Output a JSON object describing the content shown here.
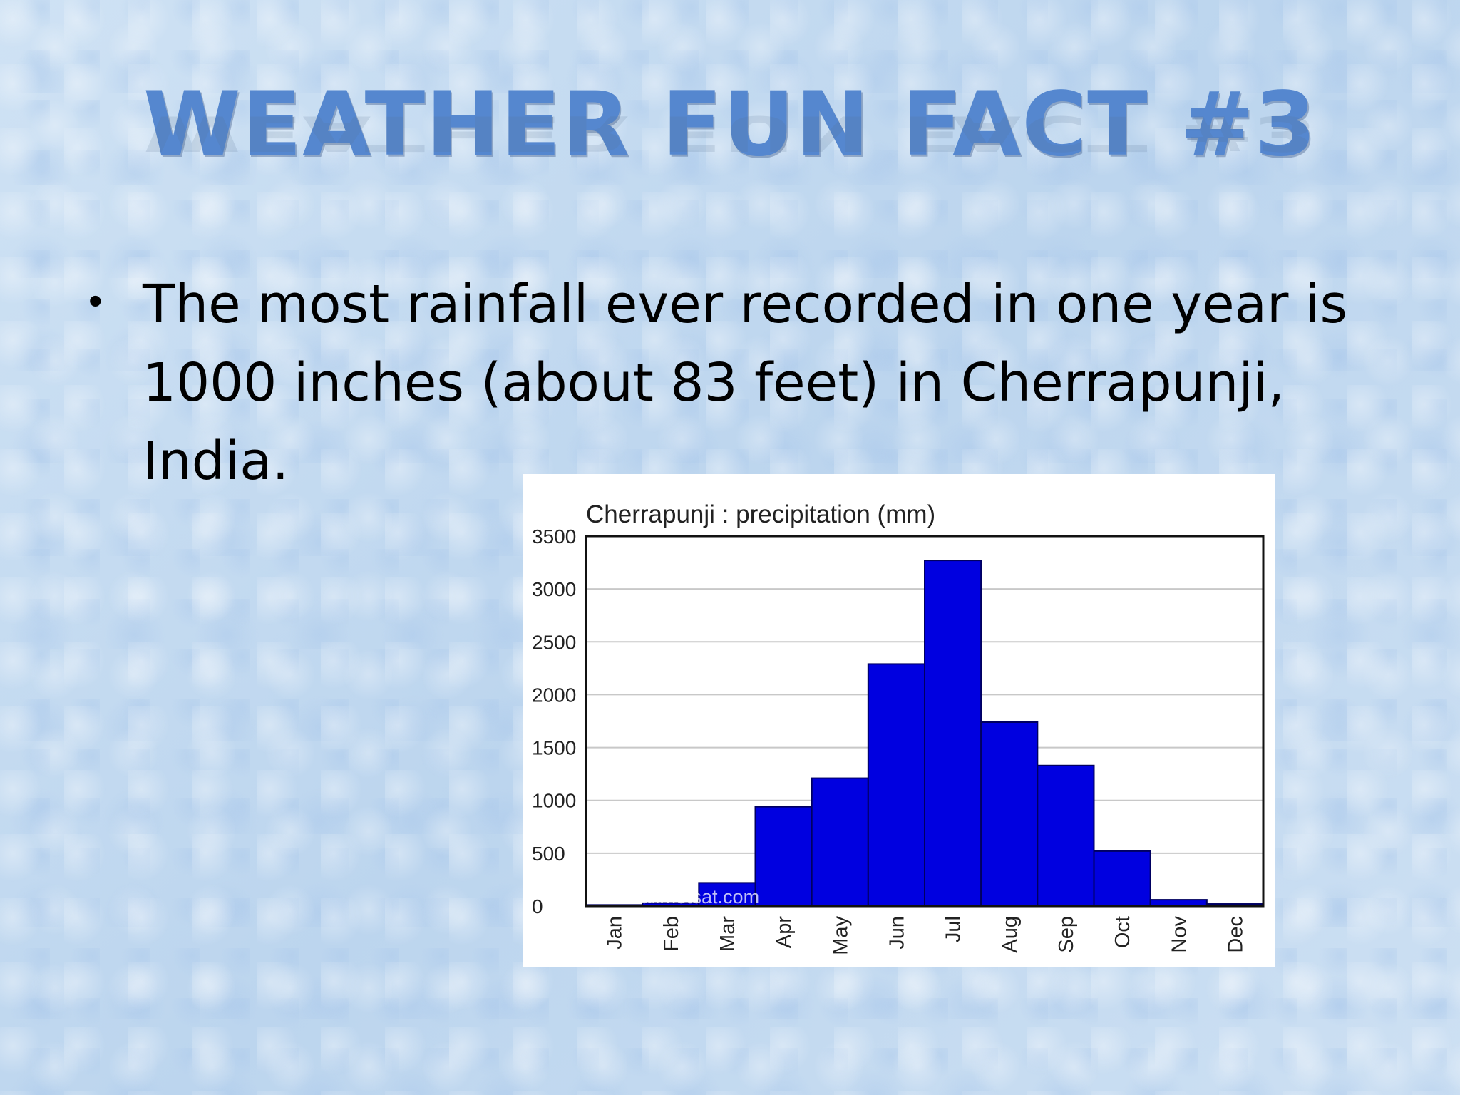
{
  "slide": {
    "title": "WEATHER FUN FACT #3",
    "bullet": "The most rainfall ever recorded in one year is 1000 inches (about 83 feet) in Cherrapunji, India."
  },
  "chart_data": {
    "type": "bar",
    "title": "Cherrapunji : precipitation (mm)",
    "xlabel": "",
    "ylabel": "",
    "categories": [
      "Jan",
      "Feb",
      "Mar",
      "Apr",
      "May",
      "Jun",
      "Jul",
      "Aug",
      "Sep",
      "Oct",
      "Nov",
      "Dec"
    ],
    "values": [
      11,
      30,
      220,
      940,
      1210,
      2290,
      3270,
      1740,
      1330,
      520,
      60,
      20
    ],
    "ylim": [
      0,
      3500
    ],
    "yticks": [
      0,
      500,
      1000,
      1500,
      2000,
      2500,
      3000,
      3500
    ],
    "grid": true,
    "legend": "none",
    "bar_color": "#0000e0",
    "watermark": "www.allmetsat.com"
  }
}
